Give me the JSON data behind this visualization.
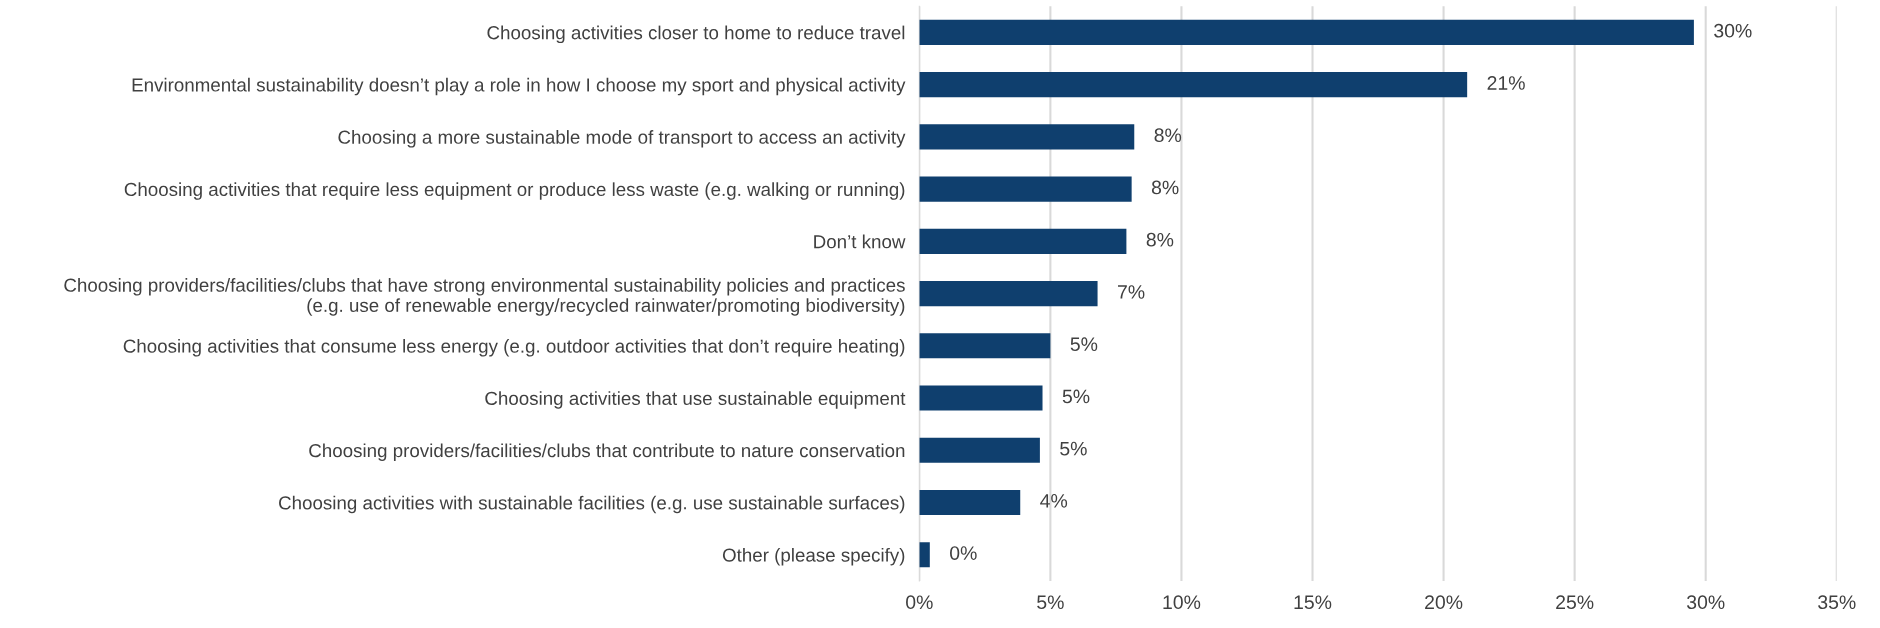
{
  "chart_data": {
    "type": "bar",
    "orientation": "horizontal",
    "categories": [
      "Choosing activities closer to home to reduce travel",
      "Environmental sustainability doesn’t play a role in how I choose my sport and physical activity",
      "Choosing a more sustainable mode of transport to access an activity",
      "Choosing activities that require less equipment or produce less waste (e.g. walking or running)",
      "Don’t know",
      "Choosing providers/facilities/clubs that have strong environmental sustainability policies and practices\n(e.g. use of renewable energy/recycled rainwater/promoting biodiversity)",
      "Choosing activities that consume less energy (e.g. outdoor activities that don’t require heating)",
      "Choosing activities that use sustainable equipment",
      "Choosing providers/facilities/clubs that contribute to nature conservation",
      "Choosing activities with sustainable facilities (e.g. use sustainable surfaces)",
      "Other (please specify)"
    ],
    "values": [
      29.55,
      20.9,
      8.2,
      8.1,
      7.9,
      6.8,
      5.0,
      4.7,
      4.6,
      3.85,
      0.4
    ],
    "value_labels": [
      "30%",
      "21%",
      "8%",
      "8%",
      "8%",
      "7%",
      "5%",
      "5%",
      "5%",
      "4%",
      "0%"
    ],
    "color": "#0f3f6e",
    "xlim": [
      0,
      35
    ],
    "xticks": [
      {
        "value": 0,
        "label": "0%"
      },
      {
        "value": 5,
        "label": "5%"
      },
      {
        "value": 10,
        "label": "10%"
      },
      {
        "value": 15,
        "label": "15%"
      },
      {
        "value": 20,
        "label": "20%"
      },
      {
        "value": 25,
        "label": "25%"
      },
      {
        "value": 30,
        "label": "30%"
      },
      {
        "value": 35,
        "label": "35%"
      }
    ],
    "grid": "x"
  }
}
